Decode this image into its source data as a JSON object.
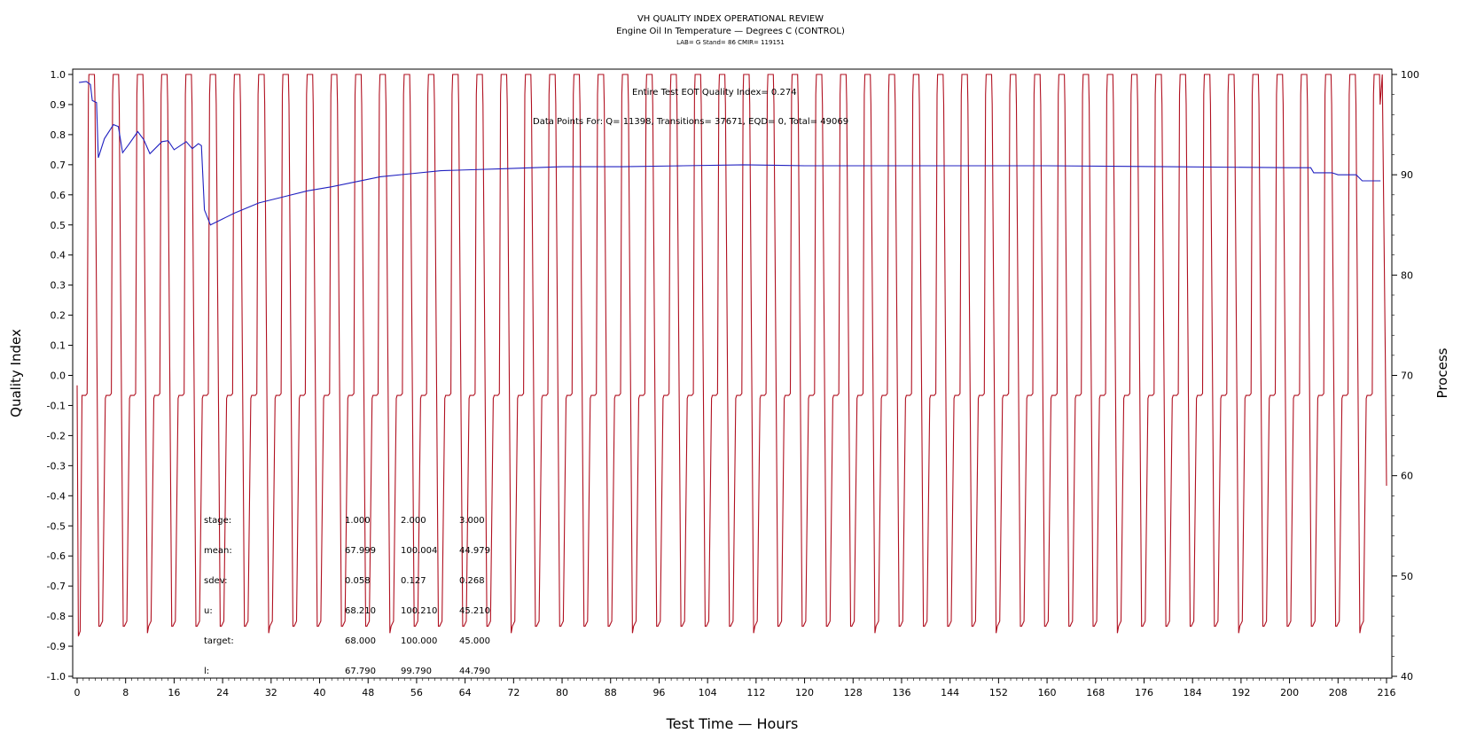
{
  "chart_data": {
    "type": "line",
    "title": "VH QUALITY INDEX OPERATIONAL REVIEW",
    "subtitle": "Engine Oil In Temperature — Degrees C (CONTROL)",
    "subsubtitle": "LAB= G Stand= 86 CMIR= 119151",
    "xlabel": "Test Time — Hours",
    "ylabel_left": "Quality Index",
    "ylabel_right": "Process",
    "xlim": [
      0,
      216
    ],
    "ylim_left": [
      -1.0,
      1.0
    ],
    "ylim_right": [
      40,
      100
    ],
    "x_ticks": [
      0,
      8,
      16,
      24,
      32,
      40,
      48,
      56,
      64,
      72,
      80,
      88,
      96,
      104,
      112,
      120,
      128,
      136,
      144,
      152,
      160,
      168,
      176,
      184,
      192,
      200,
      208,
      216
    ],
    "y_ticks_left": [
      "1.0",
      "0.9",
      "0.8",
      "0.7",
      "0.6",
      "0.5",
      "0.4",
      "0.3",
      "0.2",
      "0.1",
      "0.0",
      "-0.1",
      "-0.2",
      "-0.3",
      "-0.4",
      "-0.5",
      "-0.6",
      "-0.7",
      "-0.8",
      "-0.9",
      "-1.0"
    ],
    "y_ticks_right": [
      100,
      90,
      80,
      70,
      60,
      50,
      40
    ],
    "annotations": {
      "quality_index": "Entire Test EOT Quality Index=   0.274",
      "data_points": "Data Points For: Q=  11398, Transitions=  37671, EQD=      0, Total=  49069"
    },
    "stats_table": {
      "rows": [
        {
          "label": "stage:",
          "values": [
            "1.000",
            "2.000",
            "3.000"
          ]
        },
        {
          "label": "mean:",
          "values": [
            "67.999",
            "100.004",
            "44.979"
          ]
        },
        {
          "label": "sdev:",
          "values": [
            "0.058",
            "0.127",
            "0.268"
          ]
        },
        {
          "label": "u:",
          "values": [
            "68.210",
            "100.210",
            "45.210"
          ]
        },
        {
          "label": "target:",
          "values": [
            "68.000",
            "100.000",
            "45.000"
          ]
        },
        {
          "label": "l:",
          "values": [
            "67.790",
            "99.790",
            "44.790"
          ]
        }
      ]
    },
    "series": [
      {
        "axis": "right",
        "color": "#b01020",
        "style": "cyclic stages",
        "stage_levels": [
          68,
          100,
          45
        ],
        "cycle_hours": 4.0,
        "cycle_start_hours": 0.8,
        "cycles": 54
      },
      {
        "axis": "right",
        "color": "#2020c0",
        "x": [
          0.3,
          1.5,
          2.2,
          2.5,
          3.2,
          3.5,
          4.5,
          6.0,
          6.8,
          7.5,
          8.5,
          10.0,
          11.0,
          12.0,
          14.0,
          15.0,
          16.0,
          18.0,
          19.0,
          20.0,
          20.5,
          21.0,
          22.0,
          24.0,
          26.0,
          30.0,
          34.0,
          38.0,
          42.0,
          46.0,
          50.0,
          55.0,
          60.0,
          65.0,
          70.0,
          80.0,
          90.0,
          100.0,
          110.0,
          120.0,
          140.0,
          160.0,
          180.0,
          200.0,
          203.5,
          204.0,
          207.0,
          208.0,
          211.0,
          212.0,
          215.0
        ],
        "y": [
          99.2,
          99.3,
          99.0,
          97.4,
          97.2,
          91.7,
          93.6,
          95.0,
          94.8,
          92.2,
          93.0,
          94.3,
          93.5,
          92.1,
          93.3,
          93.4,
          92.5,
          93.3,
          92.6,
          93.1,
          92.9,
          86.5,
          85.0,
          85.6,
          86.2,
          87.2,
          87.8,
          88.4,
          88.8,
          89.3,
          89.8,
          90.1,
          90.4,
          90.5,
          90.6,
          90.8,
          90.8,
          90.9,
          91.0,
          90.9,
          90.9,
          90.9,
          90.8,
          90.7,
          90.7,
          90.2,
          90.2,
          90.0,
          90.0,
          89.4,
          89.4
        ]
      }
    ],
    "grid": false,
    "legend": "none"
  }
}
